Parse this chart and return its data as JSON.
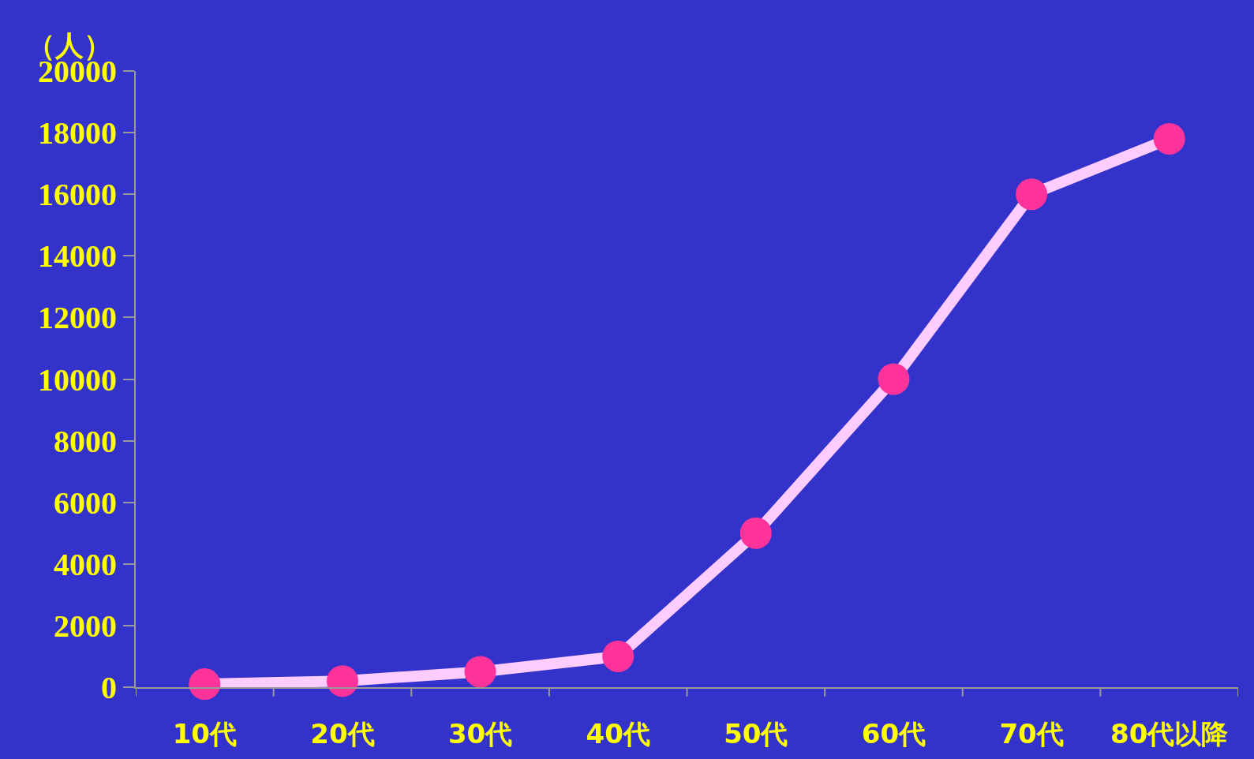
{
  "chart_data": {
    "type": "line",
    "ylabel": "（人）",
    "categories": [
      "10代",
      "20代",
      "30代",
      "40代",
      "50代",
      "60代",
      "70代",
      "80代以降"
    ],
    "series": [
      {
        "color": "#ffccff",
        "colors": [
          "#ff3399",
          "#ff3399",
          "#ff3399",
          "#ff3399",
          "#ff3399",
          "#ff3399",
          "#ff3399",
          "#ff3399"
        ],
        "values": [
          100,
          200,
          500,
          1000,
          5000,
          10000,
          16000,
          17800
        ]
      }
    ],
    "ylim": [
      0,
      20000
    ],
    "yticks": [
      0,
      2000,
      4000,
      6000,
      8000,
      10000,
      12000,
      14000,
      16000,
      18000,
      20000
    ],
    "grid": false,
    "legend": false,
    "marker": "circle",
    "line_style": "solid"
  }
}
